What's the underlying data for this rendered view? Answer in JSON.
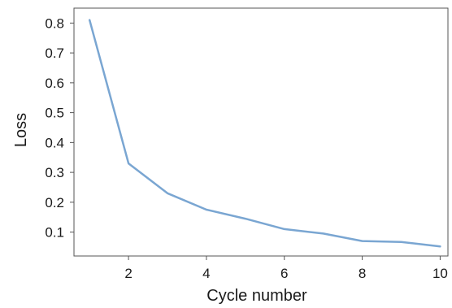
{
  "chart_data": {
    "type": "line",
    "title": "",
    "xlabel": "Cycle number",
    "ylabel": "Loss",
    "xlim": [
      0.6,
      10.2
    ],
    "ylim": [
      0.02,
      0.85
    ],
    "xticks": [
      2,
      4,
      6,
      8,
      10
    ],
    "yticks": [
      0.1,
      0.2,
      0.3,
      0.4,
      0.5,
      0.6,
      0.7,
      0.8
    ],
    "grid": false,
    "legend": "none",
    "series": [
      {
        "color": "#7aa6d2",
        "x": [
          1,
          2,
          3,
          4,
          5,
          6,
          7,
          8,
          9,
          10
        ],
        "y": [
          0.81,
          0.33,
          0.23,
          0.175,
          0.145,
          0.11,
          0.095,
          0.07,
          0.067,
          0.052
        ]
      }
    ]
  }
}
